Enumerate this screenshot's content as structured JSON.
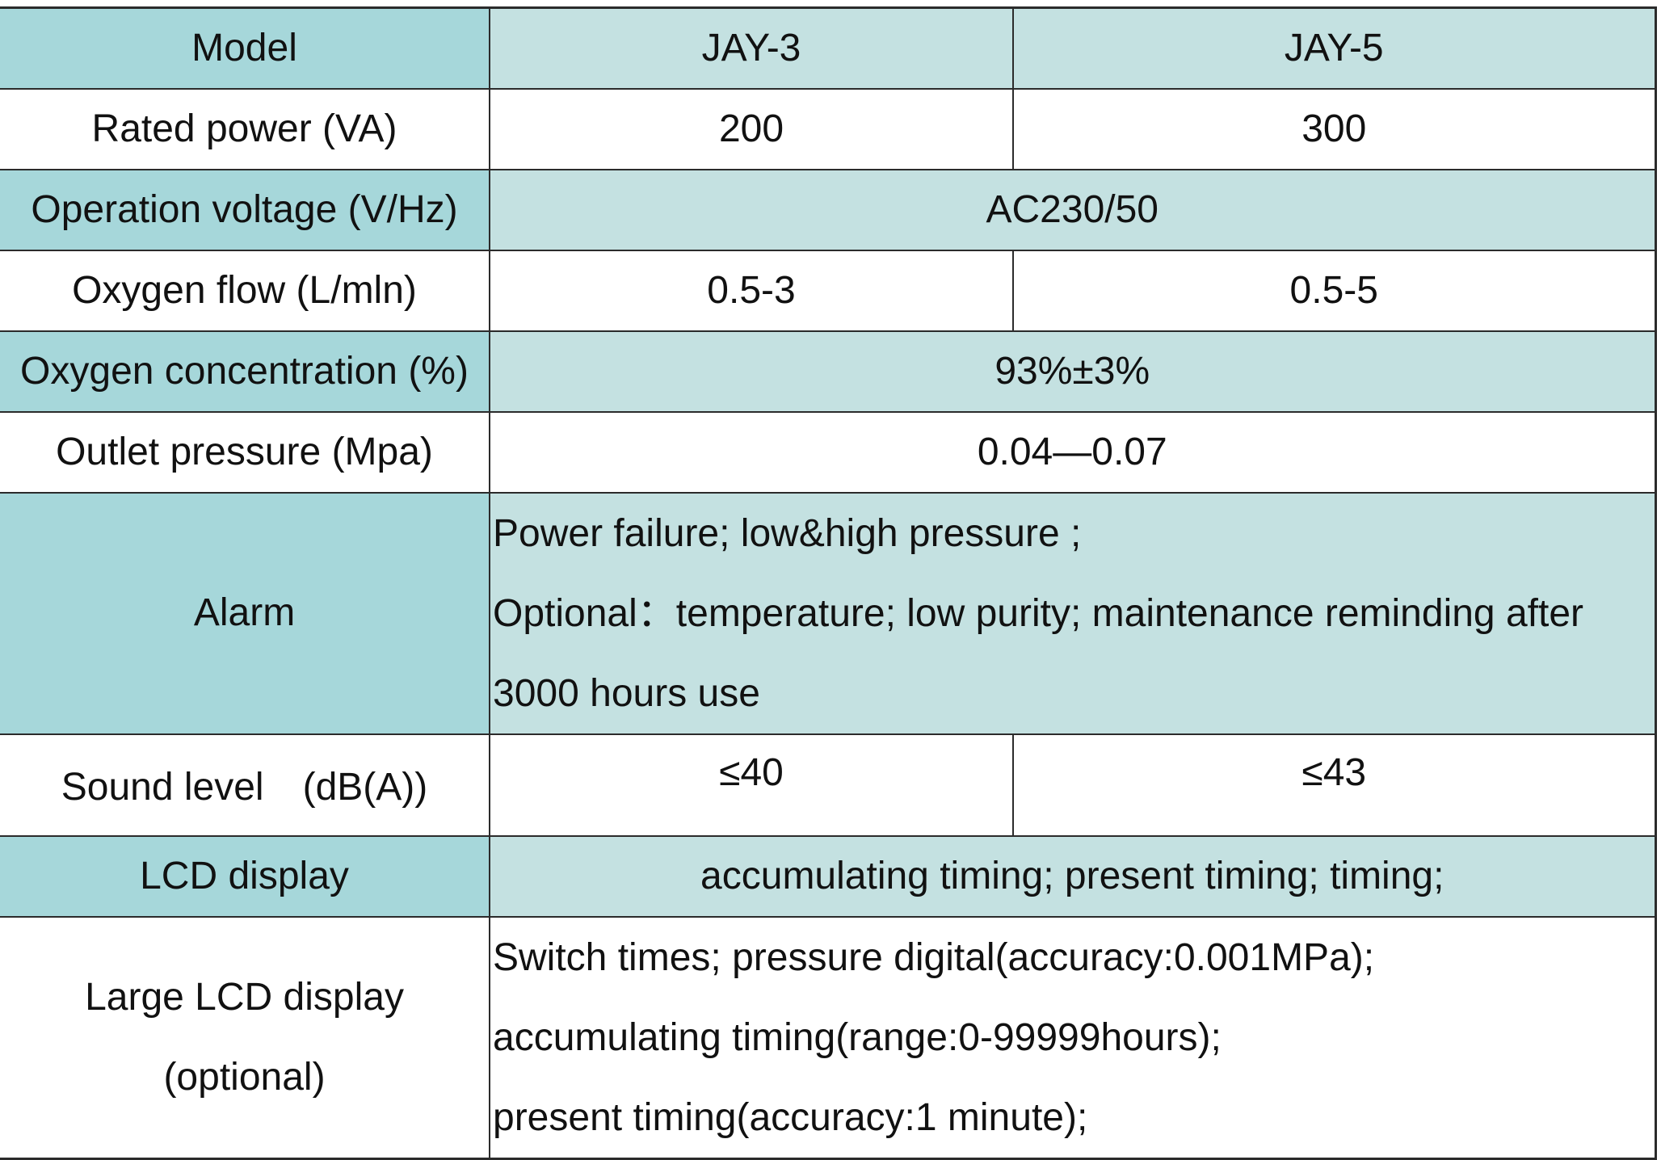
{
  "table": {
    "header": {
      "label": "Model",
      "model_a": "JAY-3",
      "model_b": "JAY-5"
    },
    "rated_power": {
      "label": "Rated power (VA)",
      "model_a": "200",
      "model_b": "300"
    },
    "operation_voltage": {
      "label": "Operation voltage (V/Hz)",
      "value": "AC230/50"
    },
    "oxygen_flow": {
      "label": "Oxygen flow (L/mln)",
      "model_a": "0.5-3",
      "model_b": "0.5-5"
    },
    "oxygen_concentration": {
      "label": "Oxygen concentration (%)",
      "value": "93%±3%"
    },
    "outlet_pressure": {
      "label": "Outlet pressure (Mpa)",
      "value": "0.04—0.07"
    },
    "alarm": {
      "label": "Alarm",
      "lines": [
        "Power failure; low&high pressure ;",
        "Optional：temperature; low purity; maintenance reminding after",
        "3000 hours use"
      ]
    },
    "sound_level": {
      "label": "Sound level　(dB(A))",
      "model_a": "≤40",
      "model_b": "≤43"
    },
    "lcd_display": {
      "label": "LCD display",
      "value": "accumulating timing; present timing; timing;"
    },
    "large_lcd_display": {
      "label_lines": [
        "Large LCD display",
        "(optional)"
      ],
      "lines": [
        "Switch times; pressure digital(accuracy:0.001MPa);",
        "accumulating timing(range:0-99999hours);",
        "present timing(accuracy:1 minute);"
      ]
    }
  },
  "colors": {
    "label_teal": "#a6d7da",
    "value_teal": "#c4e1e1",
    "white": "#ffffff",
    "border": "#2b2b2b"
  }
}
